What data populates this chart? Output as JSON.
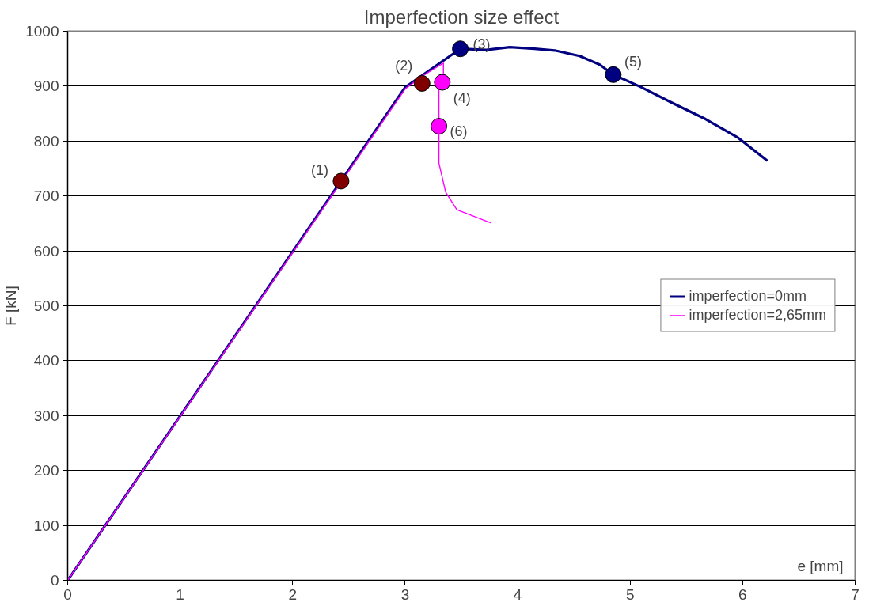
{
  "chart_data": {
    "type": "line",
    "title": "Imperfection size effect",
    "xlabel": "e [mm]",
    "ylabel": "F [kN]",
    "xlim": [
      0,
      7
    ],
    "ylim": [
      0,
      1000
    ],
    "xticks": [
      0,
      1,
      2,
      3,
      4,
      5,
      6,
      7
    ],
    "yticks": [
      0,
      100,
      200,
      300,
      400,
      500,
      600,
      700,
      800,
      900,
      1000
    ],
    "grid": "y",
    "legend": "right",
    "marker": "none",
    "line_style": "solid",
    "series": [
      {
        "name": "imperfection=0mm",
        "color": "#000080",
        "x": [
          0,
          3.0,
          3.21,
          3.49,
          3.72,
          3.93,
          4.15,
          4.33,
          4.55,
          4.73,
          4.85,
          5.09,
          5.37,
          5.67,
          5.96,
          6.22
        ],
        "values": [
          0,
          898,
          928,
          968,
          966,
          971,
          968,
          965,
          955,
          939,
          921,
          899,
          870,
          840,
          806,
          764
        ]
      },
      {
        "name": "imperfection=2,65mm",
        "color": "#ff00ff",
        "x": [
          0,
          3.0,
          3.15,
          3.34,
          3.34,
          3.3,
          3.3,
          3.3,
          3.36,
          3.46,
          3.76
        ],
        "values": [
          0,
          895,
          918,
          942,
          923,
          907,
          827,
          760,
          707,
          675,
          651
        ]
      },
      {
        "type": "scatter",
        "marker": "circle",
        "colors": [
          "#800000",
          "#800000",
          "#000080",
          "#ff00ff",
          "#000080",
          "#ff00ff"
        ],
        "x": [
          2.43,
          3.15,
          3.49,
          3.33,
          4.85,
          3.3
        ],
        "values": [
          727,
          905,
          968,
          907,
          921,
          827
        ]
      }
    ],
    "annotations": [
      {
        "text": "(1)",
        "x": 2.43,
        "y": 727
      },
      {
        "text": "(2)",
        "x": 3.15,
        "y": 905
      },
      {
        "text": "(3)",
        "x": 3.49,
        "y": 968
      },
      {
        "text": "(4)",
        "x": 3.33,
        "y": 907
      },
      {
        "text": "(5)",
        "x": 4.85,
        "y": 921
      },
      {
        "text": "(6)",
        "x": 3.3,
        "y": 827
      }
    ]
  }
}
